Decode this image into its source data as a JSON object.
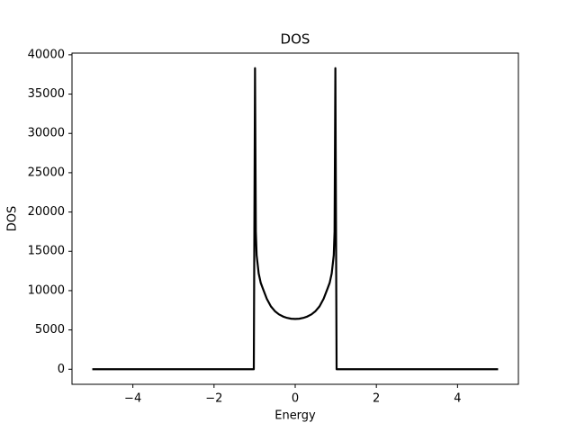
{
  "chart_data": {
    "type": "line",
    "title": "DOS",
    "x_label": "Energy",
    "y_label": "DOS",
    "x": [
      -5,
      -1.02,
      -0.99,
      -0.97,
      -0.95,
      -0.9,
      -0.85,
      -0.8,
      -0.7,
      -0.6,
      -0.5,
      -0.4,
      -0.3,
      -0.2,
      -0.1,
      0,
      0.1,
      0.2,
      0.3,
      0.4,
      0.5,
      0.6,
      0.7,
      0.8,
      0.85,
      0.9,
      0.95,
      0.97,
      0.99,
      1.02,
      5
    ],
    "values": [
      0,
      0,
      38300,
      17500,
      14500,
      12200,
      11000,
      10300,
      8960,
      8000,
      7390,
      6980,
      6710,
      6530,
      6430,
      6400,
      6430,
      6530,
      6710,
      6980,
      7390,
      8000,
      8960,
      10300,
      11000,
      12200,
      14500,
      17500,
      38300,
      0,
      0
    ],
    "color": "#000000",
    "xlim": [
      -5.5,
      5.5
    ],
    "xticks": [
      {
        "value": -4,
        "label": "−4"
      },
      {
        "value": -2,
        "label": "−2"
      },
      0,
      2,
      4
    ],
    "ylim": [
      -1915,
      40215
    ],
    "yticks": [
      0,
      5000,
      10000,
      15000,
      20000,
      25000,
      30000,
      35000,
      40000
    ],
    "grid": false
  }
}
